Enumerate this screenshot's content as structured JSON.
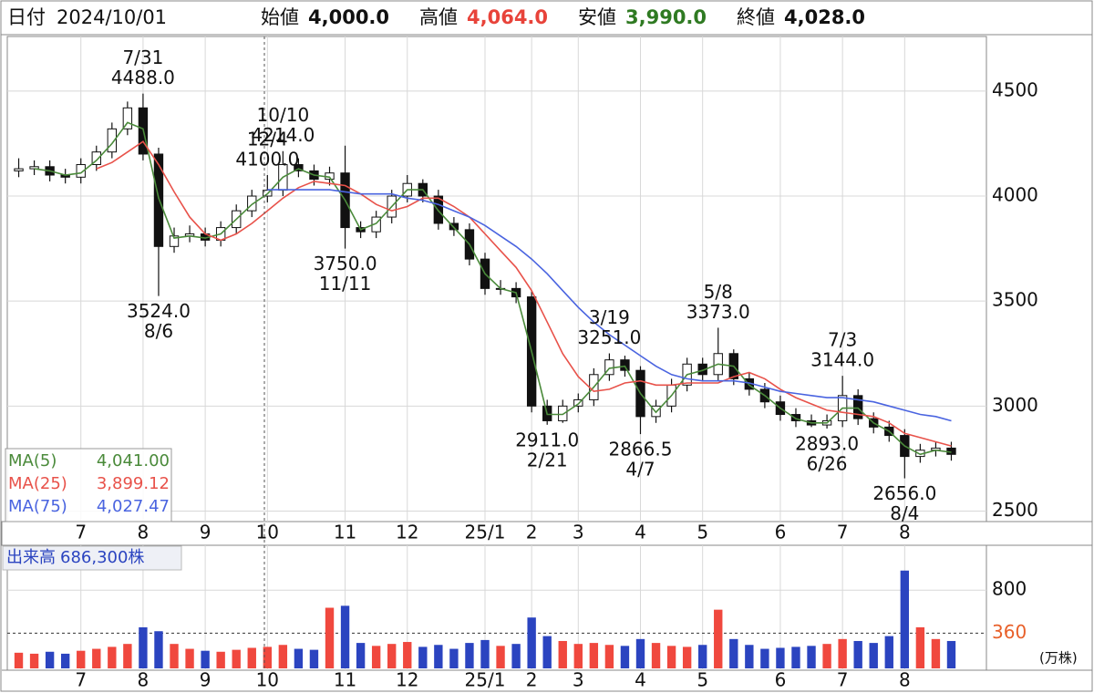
{
  "header": {
    "date_label": "日付",
    "date": "2024/10/01",
    "open_label": "始値",
    "open": "4,000.0",
    "high_label": "高値",
    "high": "4,064.0",
    "low_label": "安値",
    "low": "3,990.0",
    "close_label": "終値",
    "close": "4,028.0"
  },
  "chart_data": {
    "type": "candlestick",
    "categories": [
      null,
      null,
      null,
      null,
      "7",
      null,
      null,
      null,
      "8",
      null,
      null,
      null,
      "9",
      null,
      null,
      null,
      "10",
      null,
      null,
      null,
      null,
      "11",
      null,
      null,
      null,
      "12",
      null,
      null,
      null,
      null,
      "25/1",
      null,
      null,
      "2",
      null,
      null,
      "3",
      null,
      null,
      null,
      "4",
      null,
      null,
      null,
      "5",
      null,
      null,
      null,
      null,
      "6",
      null,
      null,
      null,
      "7",
      null,
      null,
      null,
      "8",
      null,
      null,
      null
    ],
    "open": [
      4120,
      4130,
      4140,
      4100,
      4090,
      4150,
      4210,
      4320,
      4420,
      4200,
      3760,
      3810,
      3820,
      3790,
      3850,
      3930,
      4000,
      4028,
      4150,
      4120,
      4080,
      4110,
      3850,
      3830,
      3900,
      4000,
      4060,
      4000,
      3870,
      3840,
      3700,
      3560,
      3560,
      3520,
      3000,
      2930,
      3000,
      3030,
      3150,
      3220,
      3170,
      2950,
      3000,
      3100,
      3200,
      3150,
      3250,
      3130,
      3080,
      3020,
      2960,
      2930,
      2910,
      2930,
      3050,
      2940,
      2900,
      2860,
      2760,
      2790,
      2800
    ],
    "high": [
      4180,
      4170,
      4170,
      4130,
      4180,
      4240,
      4350,
      4450,
      4488,
      4230,
      3850,
      3860,
      3850,
      3880,
      3960,
      4030,
      4100,
      4214,
      4180,
      4150,
      4140,
      4240,
      3880,
      3930,
      4030,
      4100,
      4080,
      4030,
      3900,
      3870,
      3730,
      3600,
      3590,
      3550,
      3030,
      3030,
      3060,
      3180,
      3251,
      3240,
      3190,
      3030,
      3130,
      3230,
      3230,
      3373,
      3270,
      3160,
      3110,
      3050,
      2990,
      2960,
      2960,
      3144,
      3080,
      2970,
      2930,
      2890,
      2820,
      2830,
      2830
    ],
    "low": [
      4090,
      4100,
      4070,
      4060,
      4060,
      4120,
      4180,
      4290,
      4170,
      3524,
      3730,
      3780,
      3760,
      3760,
      3820,
      3900,
      3970,
      4000,
      4090,
      4050,
      4050,
      3750,
      3800,
      3800,
      3870,
      3970,
      3970,
      3840,
      3810,
      3670,
      3530,
      3530,
      3490,
      2970,
      2911,
      2920,
      2970,
      3000,
      3120,
      3140,
      2866.5,
      2920,
      2970,
      3070,
      3120,
      3120,
      3100,
      3050,
      2990,
      2930,
      2900,
      2900,
      2893,
      2900,
      2910,
      2870,
      2830,
      2656,
      2730,
      2760,
      2740
    ],
    "close": [
      4130,
      4140,
      4100,
      4090,
      4150,
      4210,
      4320,
      4420,
      4200,
      3760,
      3810,
      3820,
      3790,
      3850,
      3930,
      4000,
      4028,
      4150,
      4120,
      4080,
      4110,
      3850,
      3830,
      3900,
      4000,
      4060,
      4000,
      3870,
      3840,
      3700,
      3560,
      3560,
      3520,
      3000,
      2930,
      3000,
      3030,
      3150,
      3220,
      3170,
      2950,
      3000,
      3100,
      3200,
      3150,
      3250,
      3130,
      3080,
      3020,
      2960,
      2930,
      2910,
      2930,
      3050,
      2940,
      2900,
      2860,
      2760,
      2790,
      2800,
      2770
    ],
    "up_color": "#ffffff",
    "down_color": "#111111",
    "ylim": [
      2450,
      4760
    ],
    "yticks": [
      2500,
      3000,
      3500,
      4000,
      4500
    ],
    "grid": true,
    "series": [
      {
        "name": "MA(5)",
        "legend_value": "4,041.00",
        "color": "#4a8a3a",
        "values": [
          null,
          4130,
          4120,
          4100,
          4110,
          4170,
          4250,
          4350,
          4320,
          3990,
          3800,
          3810,
          3800,
          3820,
          3890,
          3960,
          4010,
          4090,
          4130,
          4100,
          4090,
          3980,
          3840,
          3870,
          3950,
          4030,
          4030,
          3930,
          3850,
          3770,
          3630,
          3560,
          3540,
          3260,
          2960,
          2960,
          3010,
          3090,
          3180,
          3190,
          3060,
          2970,
          3050,
          3150,
          3170,
          3200,
          3190,
          3100,
          3050,
          2990,
          2940,
          2920,
          2920,
          2990,
          2990,
          2920,
          2880,
          2810,
          2770,
          2790,
          2780
        ]
      },
      {
        "name": "MA(25)",
        "legend_value": "3,899.12",
        "color": "#e8524a",
        "values": [
          null,
          null,
          null,
          null,
          null,
          4130,
          4160,
          4210,
          4260,
          4150,
          4020,
          3900,
          3820,
          3790,
          3820,
          3870,
          3930,
          3990,
          4040,
          4070,
          4060,
          4050,
          4010,
          3960,
          3930,
          3950,
          3990,
          3990,
          3950,
          3900,
          3820,
          3740,
          3660,
          3550,
          3400,
          3250,
          3140,
          3070,
          3080,
          3110,
          3120,
          3100,
          3100,
          3110,
          3110,
          3110,
          3140,
          3160,
          3130,
          3080,
          3040,
          3010,
          2980,
          2970,
          2960,
          2950,
          2920,
          2870,
          2850,
          2830,
          2810
        ]
      },
      {
        "name": "MA(75)",
        "legend_value": "4,027.47",
        "color": "#4a64e0",
        "values": [
          null,
          null,
          null,
          null,
          null,
          null,
          null,
          null,
          null,
          null,
          null,
          null,
          null,
          null,
          null,
          null,
          4030,
          4030,
          4030,
          4030,
          4030,
          4020,
          4010,
          4010,
          4010,
          3990,
          3980,
          3960,
          3930,
          3900,
          3860,
          3810,
          3760,
          3700,
          3630,
          3550,
          3470,
          3400,
          3340,
          3290,
          3240,
          3190,
          3150,
          3130,
          3120,
          3120,
          3120,
          3110,
          3090,
          3070,
          3060,
          3050,
          3040,
          3040,
          3030,
          3020,
          3000,
          2980,
          2960,
          2950,
          2930
        ]
      }
    ],
    "annotations": [
      {
        "text": "7/31",
        "kind": "high",
        "value": 4488.0,
        "value_label": "4488.0"
      },
      {
        "text": "8/6",
        "kind": "low",
        "value": 3524.0,
        "value_label": "3524.0"
      },
      {
        "text": "10/10",
        "kind": "high",
        "value": 4214.0,
        "value_label": "4214.0"
      },
      {
        "text": "11/11",
        "kind": "low",
        "value": 3750.0,
        "value_label": "3750.0"
      },
      {
        "text": "12/4",
        "kind": "high",
        "value": 4100.0,
        "value_label": "4100.0"
      },
      {
        "text": "2/21",
        "kind": "low",
        "value": 2911.0,
        "value_label": "2911.0"
      },
      {
        "text": "3/19",
        "kind": "high",
        "value": 3251.0,
        "value_label": "3251.0"
      },
      {
        "text": "4/7",
        "kind": "low",
        "value": 2866.5,
        "value_label": "2866.5"
      },
      {
        "text": "5/8",
        "kind": "high",
        "value": 3373.0,
        "value_label": "3373.0"
      },
      {
        "text": "6/26",
        "kind": "low",
        "value": 2893.0,
        "value_label": "2893.0"
      },
      {
        "text": "7/3",
        "kind": "high",
        "value": 3144.0,
        "value_label": "3144.0"
      },
      {
        "text": "8/4",
        "kind": "low",
        "value": 2656.0,
        "value_label": "2656.0"
      }
    ],
    "volume": {
      "title": "出来高",
      "value_label": "686,300株",
      "unit": "(万株)",
      "up_color": "#f0483e",
      "down_color": "#2b44c0",
      "ylim": [
        0,
        1240
      ],
      "yticks": [
        800
      ],
      "average": 360,
      "average_color": "#e8602a",
      "values": [
        160,
        150,
        170,
        150,
        180,
        200,
        220,
        250,
        420,
        380,
        250,
        200,
        180,
        170,
        190,
        210,
        220,
        240,
        200,
        190,
        620,
        640,
        260,
        230,
        250,
        270,
        220,
        240,
        200,
        260,
        290,
        230,
        250,
        520,
        330,
        280,
        250,
        260,
        240,
        230,
        300,
        260,
        230,
        220,
        240,
        600,
        300,
        240,
        200,
        210,
        220,
        230,
        250,
        300,
        280,
        260,
        330,
        1000,
        420,
        300,
        280
      ]
    }
  }
}
